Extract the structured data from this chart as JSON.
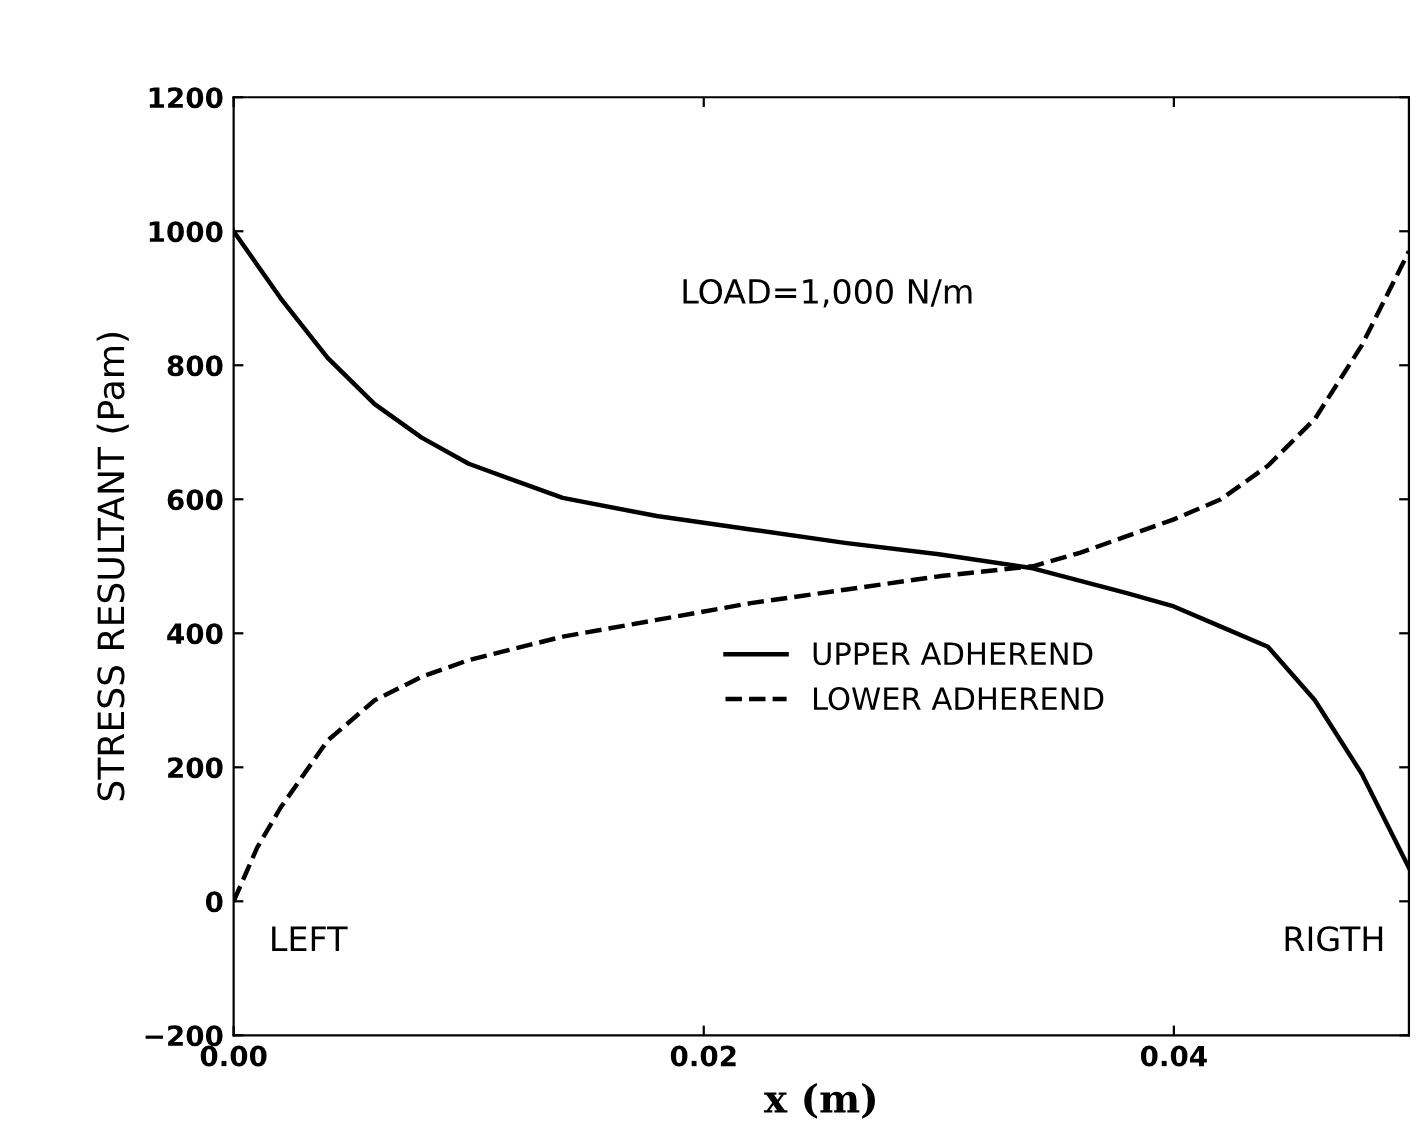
{
  "chart_data": {
    "type": "line",
    "xlabel": "x (m)",
    "ylabel": "STRESS RESULTANT (Pam)",
    "xlim": [
      0,
      0.05
    ],
    "xticks": [
      {
        "value": 0,
        "label": "0.00"
      },
      {
        "value": 0.02,
        "label": "0.02"
      },
      {
        "value": 0.04,
        "label": "0.04"
      }
    ],
    "ylim": [
      -200,
      1200
    ],
    "yticks": [
      {
        "value": -200,
        "label": "−200"
      },
      0,
      200,
      400,
      600,
      800,
      1000,
      1200
    ],
    "grid": false,
    "legend": "center",
    "marker": "none",
    "annotations": [
      {
        "text": "LOAD=1,000 N/m"
      },
      {
        "text": "LEFT"
      },
      {
        "text": "RIGTH"
      }
    ],
    "series": [
      {
        "name": "UPPER ADHEREND",
        "color": "#000000",
        "line_style": "solid",
        "x": [
          0,
          0.002,
          0.004,
          0.006,
          0.008,
          0.01,
          0.014,
          0.018,
          0.022,
          0.026,
          0.03,
          0.034,
          0.038,
          0.04,
          0.042,
          0.044,
          0.046,
          0.048,
          0.05
        ],
        "values": [
          1000,
          900,
          811,
          742,
          692,
          653,
          602,
          575,
          555,
          535,
          518,
          497,
          460,
          440,
          410,
          380,
          300,
          190,
          50
        ]
      },
      {
        "name": "LOWER ADHEREND",
        "color": "#000000",
        "line_style": "dashed",
        "x": [
          0,
          0.001,
          0.002,
          0.004,
          0.006,
          0.008,
          0.01,
          0.014,
          0.018,
          0.022,
          0.026,
          0.03,
          0.034,
          0.036,
          0.038,
          0.04,
          0.042,
          0.044,
          0.046,
          0.048,
          0.05
        ],
        "values": [
          0,
          80,
          140,
          240,
          300,
          335,
          360,
          395,
          420,
          445,
          465,
          485,
          500,
          520,
          545,
          570,
          600,
          650,
          720,
          830,
          970
        ]
      }
    ]
  }
}
